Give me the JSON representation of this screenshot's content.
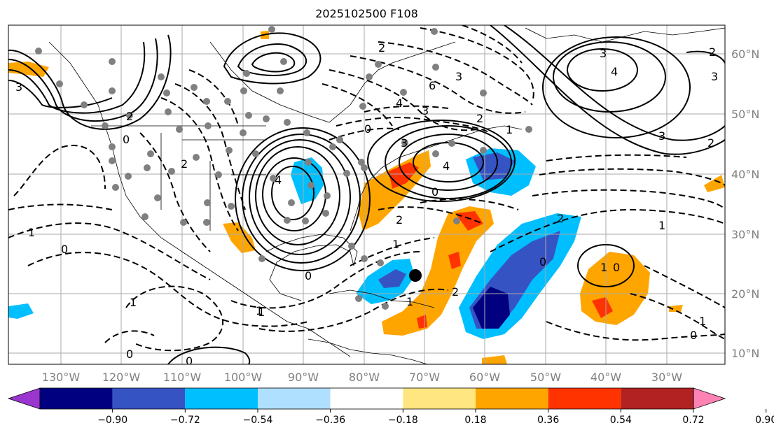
{
  "title": "2025102500 F108",
  "map": {
    "lon_labels": [
      "130°W",
      "120°W",
      "110°W",
      "100°W",
      "90°W",
      "80°W",
      "70°W",
      "60°W",
      "50°W",
      "40°W",
      "30°W"
    ],
    "lat_labels": [
      "60°N",
      "50°N",
      "40°N",
      "30°N",
      "20°N",
      "10°N"
    ],
    "contour_labels": [
      "3",
      "4",
      "2",
      "2",
      "6",
      "3",
      "4",
      "3",
      "0",
      "2",
      "1",
      "4",
      "0",
      "2",
      "1",
      "1",
      "0",
      "0",
      "1",
      "1",
      "1",
      "2",
      "0",
      "1",
      "0",
      "1",
      "1",
      "0",
      "3",
      "2",
      "0",
      "0",
      "2",
      "3",
      "2",
      "2",
      "3",
      "0",
      "4",
      "3",
      "1"
    ]
  },
  "colorbar": {
    "tick_labels": [
      "−0.90",
      "−0.72",
      "−0.54",
      "−0.36",
      "−0.18",
      "0.18",
      "0.36",
      "0.54",
      "0.72",
      "0.90"
    ],
    "colors": [
      "#9a35d0",
      "#000080",
      "#3653c4",
      "#00bfff",
      "#b0e0ff",
      "#ffffff",
      "#ffe680",
      "#ffa500",
      "#ff3300",
      "#b22222",
      "#ff82b4"
    ]
  },
  "colors": {
    "neg_deep": "#000080",
    "neg_mid": "#3653c4",
    "neg_light": "#00bfff",
    "pos_mid": "#ffa500",
    "pos_high": "#ff3300",
    "station_dot": "#808080",
    "contour": "#000000",
    "grid": "#aaaaaa"
  }
}
